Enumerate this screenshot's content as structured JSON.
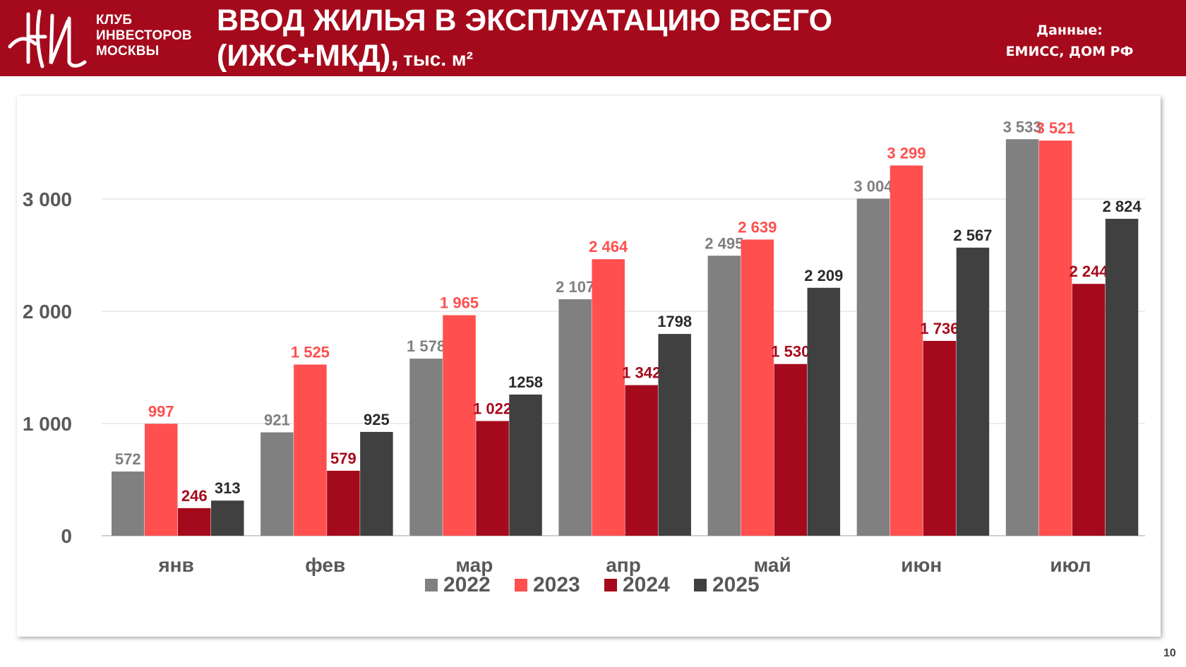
{
  "header": {
    "org_lines": [
      "КЛУБ",
      "ИНВЕСТОРОВ",
      "МОСКВЫ"
    ],
    "title_line1": "ВВОД ЖИЛЬЯ В ЭКСПЛУАТАЦИЮ ВСЕГО",
    "title_line2": "(ИЖС+МКД),",
    "title_unit": "тыс. м²",
    "source_label": "Данные:",
    "source_value": "ЕМИСС, ДОМ РФ"
  },
  "page_number": "10",
  "colors": {
    "header_bg": "#a50a1c",
    "2022": "#808080",
    "2023": "#ff4f4f",
    "2024": "#a50a1c",
    "2025": "#404040"
  },
  "chart_data": {
    "type": "bar",
    "categories": [
      "янв",
      "фев",
      "мар",
      "апр",
      "май",
      "июн",
      "июл"
    ],
    "series": [
      {
        "name": "2022",
        "values": [
          572,
          921,
          1578,
          2107,
          2495,
          3004,
          3533
        ],
        "labels": [
          "572",
          "921",
          "1 578",
          "2 107",
          "2 495",
          "3 004",
          "3 533"
        ]
      },
      {
        "name": "2023",
        "values": [
          997,
          1525,
          1965,
          2464,
          2639,
          3299,
          3521
        ],
        "labels": [
          "997",
          "1 525",
          "1 965",
          "2 464",
          "2 639",
          "3 299",
          "3 521"
        ]
      },
      {
        "name": "2024",
        "values": [
          246,
          579,
          1022,
          1342,
          1530,
          1736,
          2244
        ],
        "labels": [
          "246",
          "579",
          "1 022",
          "1 342",
          "1 530",
          "1 736",
          "2 244"
        ]
      },
      {
        "name": "2025",
        "values": [
          313,
          925,
          1258,
          1798,
          2209,
          2567,
          2824
        ],
        "labels": [
          "313",
          "925",
          "1258",
          "1798",
          "2 209",
          "2 567",
          "2 824"
        ]
      }
    ],
    "yticks": [
      0,
      1000,
      2000,
      3000
    ],
    "ytick_labels": [
      "0",
      "1 000",
      "2 000",
      "3 000"
    ],
    "ylim": [
      0,
      3600
    ],
    "grid": true,
    "legend_position": "bottom"
  }
}
